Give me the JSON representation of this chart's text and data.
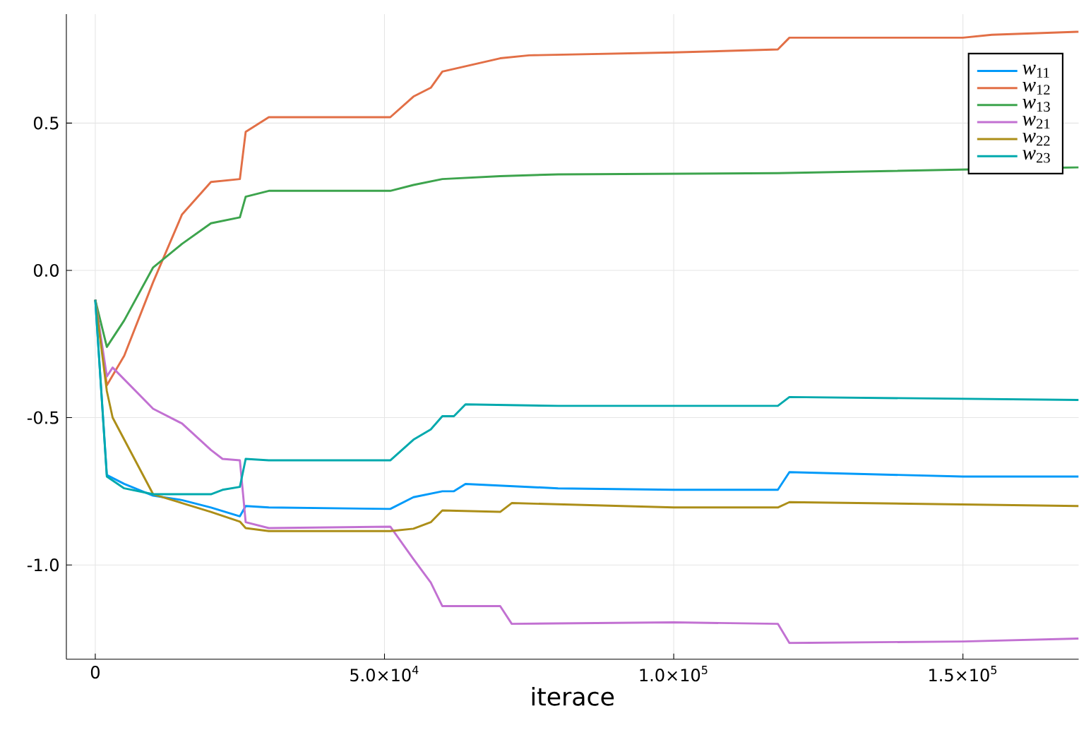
{
  "chart_data": {
    "type": "line",
    "xlabel": "iterace",
    "xlim": [
      -5000,
      170000
    ],
    "ylim": [
      -1.32,
      0.87
    ],
    "xticks": [
      0,
      {
        "value": 50000,
        "label": "5.0×10$^{4}$"
      },
      {
        "value": 100000,
        "label": "1.0×10$^{5}$"
      },
      {
        "value": 150000,
        "label": "1.5×10$^{5}$"
      }
    ],
    "yticks": [
      {
        "value": -1.0,
        "label": "-1.0"
      },
      {
        "value": -0.5,
        "label": "-0.5"
      },
      {
        "value": 0.0,
        "label": "0.0"
      },
      {
        "value": 0.5,
        "label": "0.5"
      }
    ],
    "grid": true,
    "legend": "top right",
    "line_style": "solid",
    "marker": "none",
    "series": [
      {
        "name": "*w*$_{11}$",
        "color": "#009af9",
        "x": [
          0,
          2000,
          5000,
          10000,
          15000,
          20000,
          25000,
          26000,
          30000,
          51000,
          55000,
          60000,
          62000,
          64000,
          80000,
          100000,
          118000,
          120000,
          150000,
          170000
        ],
        "values": [
          -0.1,
          -0.695,
          -0.725,
          -0.765,
          -0.78,
          -0.805,
          -0.835,
          -0.8,
          -0.805,
          -0.81,
          -0.77,
          -0.75,
          -0.75,
          -0.725,
          -0.74,
          -0.745,
          -0.745,
          -0.685,
          -0.7,
          -0.7
        ]
      },
      {
        "name": "*w*$_{12}$",
        "color": "#e26f46",
        "x": [
          0,
          2000,
          5000,
          10000,
          15000,
          20000,
          25000,
          26000,
          30000,
          51000,
          55000,
          58000,
          60000,
          70000,
          75000,
          100000,
          118000,
          120000,
          150000,
          155000,
          170000
        ],
        "values": [
          -0.1,
          -0.39,
          -0.29,
          -0.04,
          0.19,
          0.3,
          0.31,
          0.47,
          0.52,
          0.52,
          0.59,
          0.62,
          0.675,
          0.72,
          0.73,
          0.74,
          0.75,
          0.79,
          0.79,
          0.8,
          0.81
        ]
      },
      {
        "name": "*w*$_{13}$",
        "color": "#3da44d",
        "x": [
          0,
          2000,
          5000,
          10000,
          15000,
          20000,
          25000,
          26000,
          30000,
          51000,
          55000,
          60000,
          70000,
          80000,
          118000,
          170000
        ],
        "values": [
          -0.1,
          -0.26,
          -0.17,
          0.01,
          0.09,
          0.16,
          0.18,
          0.25,
          0.27,
          0.27,
          0.29,
          0.31,
          0.32,
          0.326,
          0.33,
          0.35
        ]
      },
      {
        "name": "*w*$_{21}$",
        "color": "#c271d2",
        "x": [
          0,
          2000,
          3000,
          10000,
          15000,
          20000,
          22000,
          25000,
          26000,
          30000,
          51000,
          55000,
          58000,
          60000,
          70000,
          72000,
          100000,
          118000,
          120000,
          150000,
          170000
        ],
        "values": [
          -0.1,
          -0.36,
          -0.33,
          -0.47,
          -0.52,
          -0.61,
          -0.64,
          -0.645,
          -0.855,
          -0.875,
          -0.87,
          -0.98,
          -1.06,
          -1.14,
          -1.14,
          -1.2,
          -1.195,
          -1.2,
          -1.265,
          -1.26,
          -1.25
        ]
      },
      {
        "name": "*w*$_{22}$",
        "color": "#ac8e18",
        "x": [
          0,
          2000,
          3000,
          10000,
          15000,
          20000,
          25000,
          26000,
          30000,
          51000,
          55000,
          58000,
          60000,
          70000,
          72000,
          100000,
          118000,
          120000,
          170000
        ],
        "values": [
          -0.1,
          -0.41,
          -0.5,
          -0.76,
          -0.79,
          -0.82,
          -0.853,
          -0.875,
          -0.885,
          -0.885,
          -0.877,
          -0.855,
          -0.815,
          -0.82,
          -0.79,
          -0.805,
          -0.805,
          -0.787,
          -0.8
        ]
      },
      {
        "name": "*w*$_{23}$",
        "color": "#00a9ad",
        "x": [
          0,
          2000,
          5000,
          10000,
          15000,
          20000,
          22000,
          25000,
          26000,
          30000,
          51000,
          55000,
          58000,
          60000,
          62000,
          64000,
          80000,
          100000,
          118000,
          120000,
          170000
        ],
        "values": [
          -0.1,
          -0.7,
          -0.74,
          -0.76,
          -0.76,
          -0.76,
          -0.745,
          -0.735,
          -0.64,
          -0.645,
          -0.645,
          -0.575,
          -0.54,
          -0.495,
          -0.495,
          -0.455,
          -0.46,
          -0.46,
          -0.46,
          -0.43,
          -0.44
        ]
      }
    ]
  }
}
